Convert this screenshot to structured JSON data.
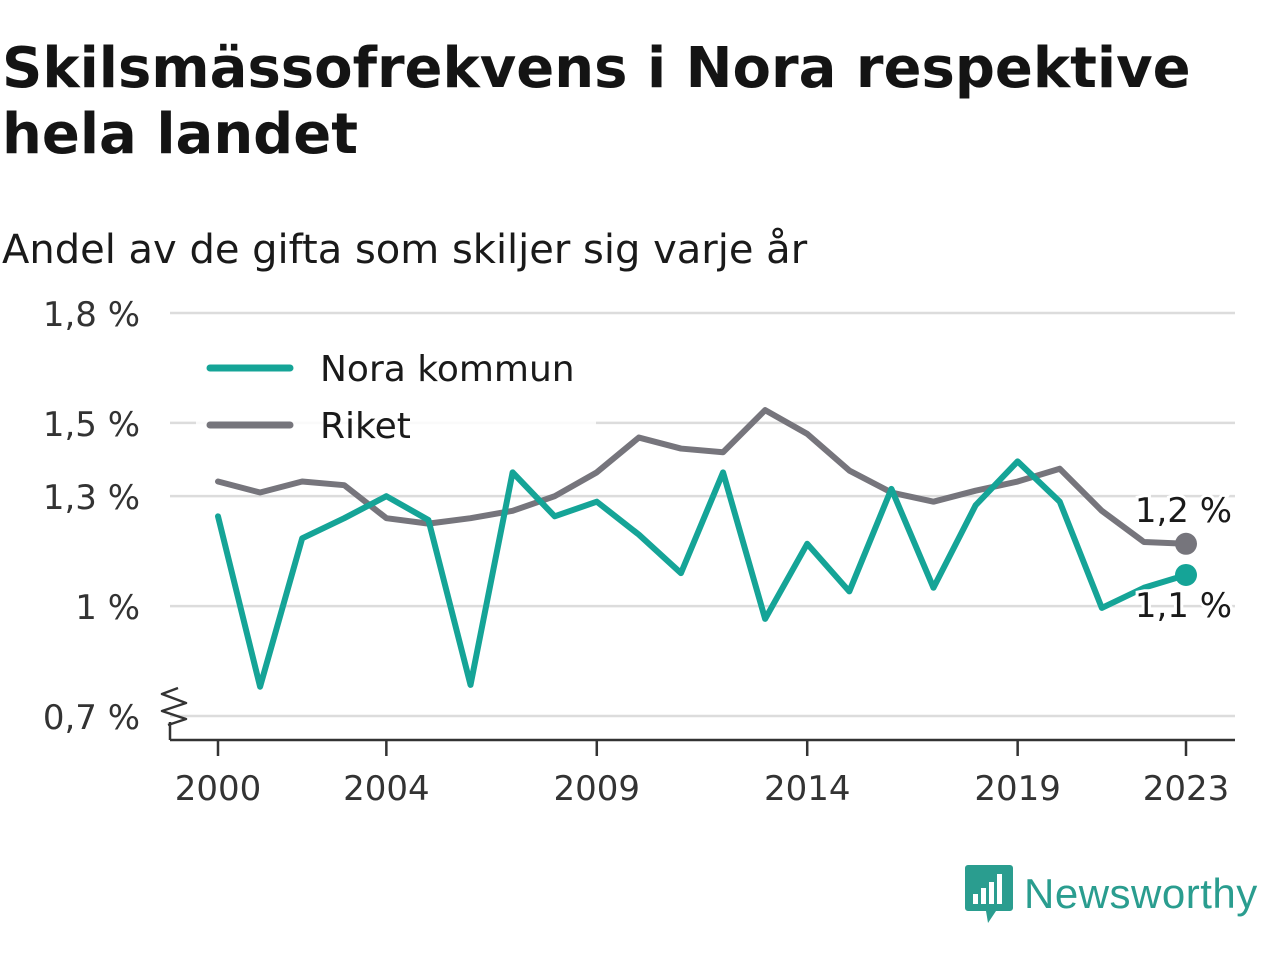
{
  "chart_data": {
    "type": "line",
    "title": "Skilsmässofrekvens i Nora respektive hela landet",
    "subtitle": "Andel av de gifta som skiljer sig varje år",
    "x": [
      2000,
      2001,
      2002,
      2003,
      2004,
      2005,
      2006,
      2007,
      2008,
      2009,
      2010,
      2011,
      2012,
      2013,
      2014,
      2015,
      2016,
      2017,
      2018,
      2019,
      2020,
      2021,
      2022,
      2023
    ],
    "x_ticks": [
      "2000",
      "2004",
      "2009",
      "2014",
      "2019",
      "2023"
    ],
    "y_ticks": [
      "0,7 %",
      "1 %",
      "1,3 %",
      "1,5 %",
      "1,8 %"
    ],
    "ylim": [
      0.7,
      1.8
    ],
    "axis_break": true,
    "grid": "horizontal",
    "legend_position": "top-left",
    "series": [
      {
        "name": "Nora kommun",
        "color": "#15a497",
        "values": [
          1.245,
          0.78,
          1.185,
          1.24,
          1.3,
          1.235,
          0.785,
          1.365,
          1.245,
          1.285,
          1.195,
          1.09,
          1.365,
          0.965,
          1.17,
          1.04,
          1.32,
          1.05,
          1.275,
          1.395,
          1.285,
          0.995,
          1.05,
          1.085
        ],
        "end_label": "1,1 %"
      },
      {
        "name": "Riket",
        "color": "#76757c",
        "values": [
          1.34,
          1.31,
          1.34,
          1.33,
          1.24,
          1.225,
          1.24,
          1.26,
          1.3,
          1.365,
          1.46,
          1.43,
          1.42,
          1.535,
          1.47,
          1.37,
          1.31,
          1.285,
          1.315,
          1.34,
          1.375,
          1.26,
          1.175,
          1.17
        ],
        "end_label": "1,2 %"
      }
    ]
  },
  "brand": {
    "name": "Newsworthy",
    "logo_icon": "newsworthy-bar-chart-icon",
    "color": "#2a9d8f"
  }
}
